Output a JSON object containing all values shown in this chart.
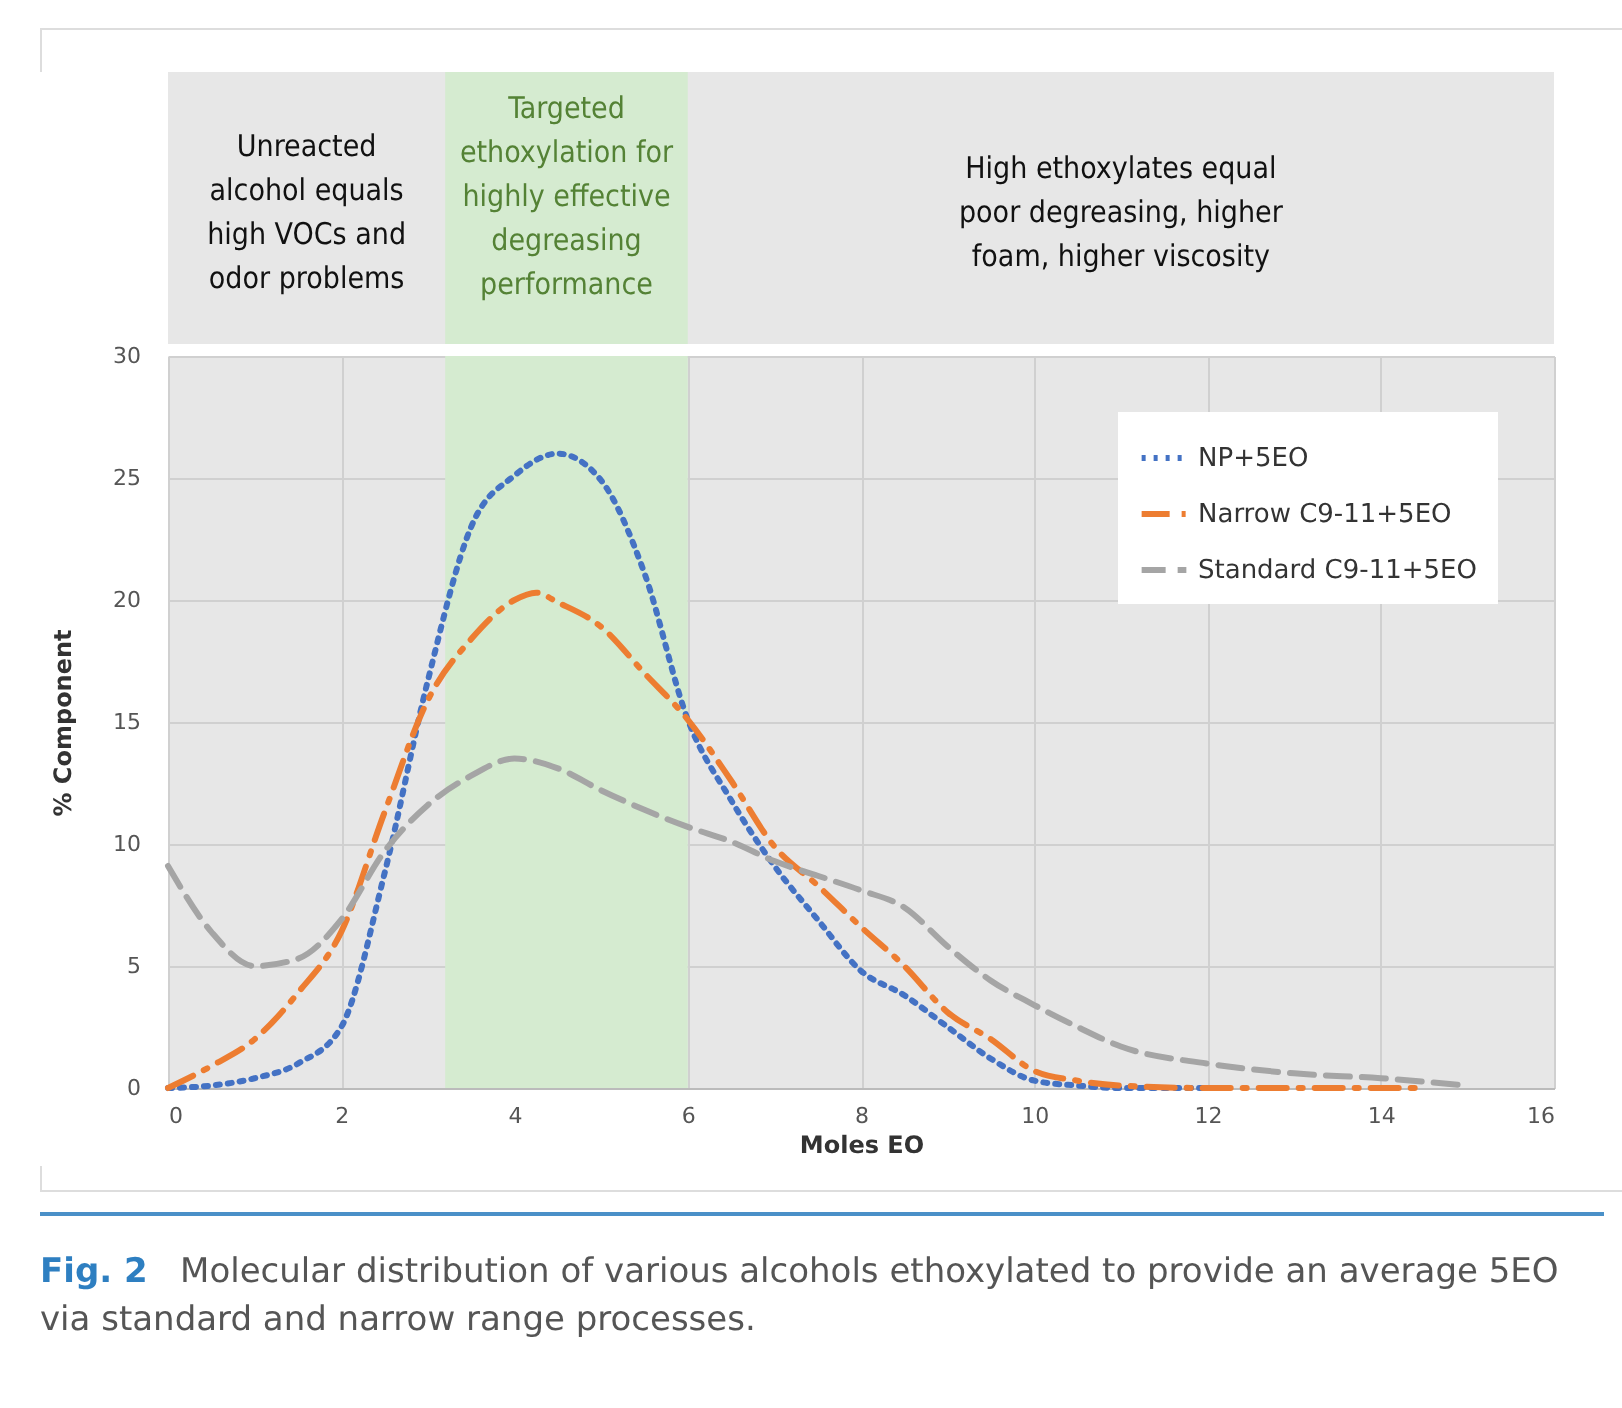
{
  "chart_data": {
    "type": "line",
    "xlabel": "Moles EO",
    "ylabel": "% Component",
    "xlim": [
      0,
      16
    ],
    "xticks": [
      0,
      2,
      4,
      6,
      8,
      10,
      12,
      14,
      16
    ],
    "ylim": [
      0,
      30
    ],
    "yticks": [
      0,
      5,
      10,
      15,
      20,
      25,
      30
    ],
    "grid": true,
    "legend": "top right",
    "marker": "none",
    "bands": [
      {
        "axis": "x",
        "from": 3.2,
        "to": 6,
        "label": "Targeted\nethoxylation for\nhighly effective\ndegreasing\nperformance",
        "color": "#d5ebd0"
      }
    ],
    "annotations": [
      "Unreacted\nalcohol equals\nhigh VOCs and\nodor problems",
      "High ethoxylates equal\npoor degreasing, higher\nfoam, higher viscosity",
      "Fig. 2   Molecular distribution of various alcohols ethoxylated to provide an average 5EO via standard and narrow range processes."
    ],
    "series": [
      {
        "name": "NP+5EO",
        "color": "#4472c4",
        "line_style": "dotted",
        "x": [
          0,
          0.5,
          1,
          1.5,
          2,
          2.5,
          3,
          3.5,
          4,
          4.5,
          5,
          5.5,
          6,
          6.5,
          7,
          7.5,
          8,
          8.5,
          9,
          9.5,
          10,
          10.5,
          11,
          12
        ],
        "values": [
          0,
          0.1,
          0.4,
          1,
          2.5,
          8.8,
          16.7,
          23,
          25.1,
          26,
          24.9,
          21.1,
          15.1,
          11.8,
          9.1,
          6.9,
          4.8,
          3.8,
          2.5,
          1.2,
          0.3,
          0.1,
          0,
          0
        ]
      },
      {
        "name": "Narrow C9-11+5EO",
        "color": "#ed7d31",
        "line_style": "dashdot",
        "x": [
          0,
          0.5,
          1,
          1.5,
          2,
          2.5,
          3,
          3.5,
          4,
          4.25,
          4.5,
          5,
          5.5,
          6,
          6.5,
          7,
          7.5,
          8,
          8.5,
          9,
          9.5,
          10,
          10.5,
          11,
          12,
          13,
          14.4
        ],
        "values": [
          0,
          0.9,
          2,
          3.9,
          6.4,
          11.3,
          15.9,
          18.4,
          20,
          20.3,
          19.9,
          18.9,
          17,
          15.1,
          12.6,
          9.9,
          8.3,
          6.6,
          5,
          3.1,
          2,
          0.7,
          0.3,
          0.1,
          0,
          0,
          0
        ]
      },
      {
        "name": "Standard C9-11+5EO",
        "color": "#a5a5a5",
        "line_style": "dashed",
        "x": [
          0,
          0.5,
          1,
          1.5,
          2,
          2.5,
          3,
          3.5,
          4,
          4.5,
          5,
          5.5,
          6,
          6.5,
          7,
          7.5,
          8,
          8.5,
          9,
          9.5,
          10,
          10.5,
          11,
          12,
          13,
          14,
          15
        ],
        "values": [
          9.1,
          6.4,
          5,
          5.3,
          6.9,
          9.7,
          11.6,
          12.8,
          13.5,
          13.1,
          12.2,
          11.4,
          10.7,
          10.1,
          9.3,
          8.7,
          8.1,
          7.4,
          5.8,
          4.4,
          3.4,
          2.5,
          1.7,
          1,
          0.6,
          0.4,
          0.1
        ]
      }
    ]
  }
}
